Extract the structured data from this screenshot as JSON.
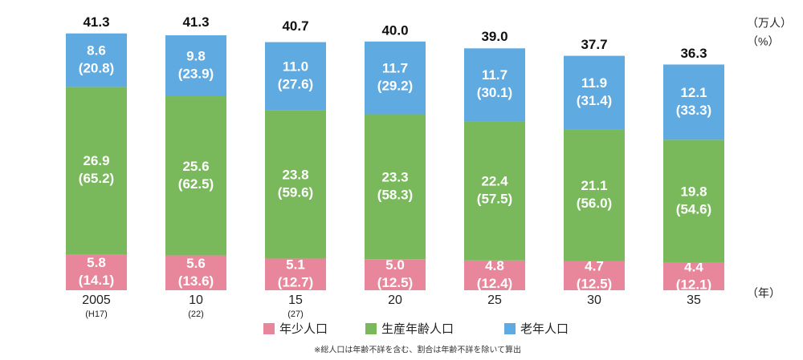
{
  "chart_data": {
    "type": "stacked_bar",
    "categories": [
      "2005",
      "10",
      "15",
      "20",
      "25",
      "30",
      "35"
    ],
    "sub_labels": [
      "(H17)",
      "(22)",
      "(27)",
      null,
      null,
      null,
      null
    ],
    "series": [
      {
        "name": "年少人口",
        "color": "#e8879b",
        "values": [
          5.8,
          5.6,
          5.1,
          5.0,
          4.8,
          4.7,
          4.4
        ],
        "value_labels": [
          "5.8",
          "5.6",
          "5.1",
          "5.0",
          "4.8",
          "4.7",
          "4.4"
        ],
        "shares": [
          14.1,
          13.6,
          12.7,
          12.5,
          12.4,
          12.5,
          12.1
        ],
        "share_labels": [
          "(14.1)",
          "(13.6)",
          "(12.7)",
          "(12.5)",
          "(12.4)",
          "(12.5)",
          "(12.1)"
        ]
      },
      {
        "name": "生産年齢人口",
        "color": "#79b95b",
        "values": [
          26.9,
          25.6,
          23.8,
          23.3,
          22.4,
          21.1,
          19.8
        ],
        "value_labels": [
          "26.9",
          "25.6",
          "23.8",
          "23.3",
          "22.4",
          "21.1",
          "19.8"
        ],
        "shares": [
          65.2,
          62.5,
          59.6,
          58.3,
          57.5,
          56.0,
          54.6
        ],
        "share_labels": [
          "(65.2)",
          "(62.5)",
          "(59.6)",
          "(58.3)",
          "(57.5)",
          "(56.0)",
          "(54.6)"
        ]
      },
      {
        "name": "老年人口",
        "color": "#5eaae1",
        "values": [
          8.6,
          9.8,
          11.0,
          11.7,
          11.7,
          11.9,
          12.1
        ],
        "value_labels": [
          "8.6",
          "9.8",
          "11.0",
          "11.7",
          "11.7",
          "11.9",
          "12.1"
        ],
        "shares": [
          20.8,
          23.9,
          27.6,
          29.2,
          30.1,
          31.4,
          33.3
        ],
        "share_labels": [
          "(20.8)",
          "(23.9)",
          "(27.6)",
          "(29.2)",
          "(30.1)",
          "(31.4)",
          "(33.3)"
        ]
      }
    ],
    "totals": [
      41.3,
      41.3,
      40.7,
      40.0,
      39.0,
      37.7,
      36.3
    ],
    "total_labels": [
      "41.3",
      "41.3",
      "40.7",
      "40.0",
      "39.0",
      "37.7",
      "36.3"
    ],
    "ylim": [
      0,
      45
    ],
    "value_unit": "（万人）",
    "share_unit": "（%）",
    "x_unit": "（年）",
    "footnote": "※総人口は年齢不詳を含む、割合は年齢不詳を除いて算出"
  }
}
